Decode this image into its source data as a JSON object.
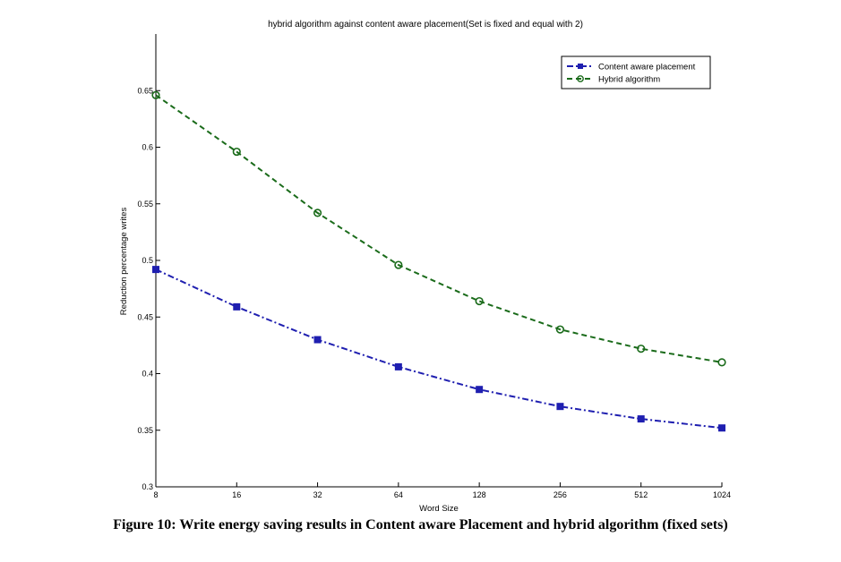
{
  "chart_data": {
    "type": "line",
    "title": "hybrid algorithm against content aware placement(Set is fixed and equal with 2)",
    "xlabel": "Word Size",
    "ylabel": "Reduction percentage writes",
    "categories": [
      "8",
      "16",
      "32",
      "64",
      "128",
      "256",
      "512",
      "1024"
    ],
    "ylim": [
      0.3,
      0.7
    ],
    "yticks": [
      "0.3",
      "0.35",
      "0.4",
      "0.45",
      "0.5",
      "0.55",
      "0.6",
      "0.65"
    ],
    "grid": false,
    "legend_position": "top-right",
    "series": [
      {
        "name": "Content aware placement",
        "color": "#1f1fb0",
        "marker": "square",
        "line_style": "dash-dot",
        "values": [
          0.492,
          0.459,
          0.43,
          0.406,
          0.386,
          0.371,
          0.36,
          0.352
        ]
      },
      {
        "name": "Hybrid algorithm",
        "color": "#1a6b1a",
        "marker": "circle",
        "line_style": "dashed",
        "values": [
          0.646,
          0.596,
          0.542,
          0.496,
          0.464,
          0.439,
          0.422,
          0.41
        ]
      }
    ]
  },
  "caption": "Figure 10: Write energy saving results in Content aware Placement and hybrid algorithm (fixed sets)"
}
